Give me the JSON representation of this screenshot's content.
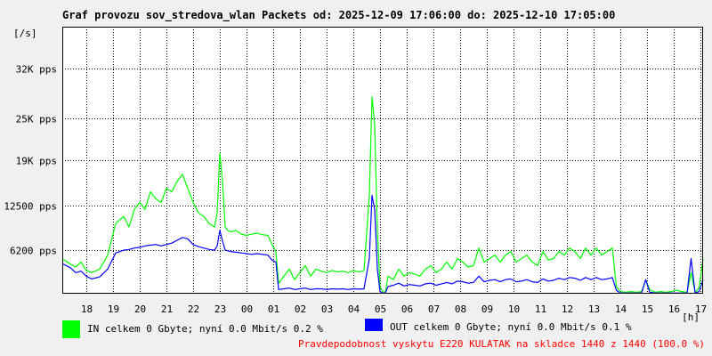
{
  "chart_data": {
    "type": "line",
    "title": "Graf provozu sov_stredova_wlan Packets od: 2025-12-09 17:06:00 do: 2025-12-10 17:05:00",
    "ylabel": "[/s]",
    "xlabel": "[h]",
    "ylim": [
      0,
      38000
    ],
    "yticks": [
      {
        "value": 6200,
        "label": "6200 pps"
      },
      {
        "value": 12500,
        "label": "12500 pps"
      },
      {
        "value": 19000,
        "label": "19K pps"
      },
      {
        "value": 25000,
        "label": "25K pps"
      },
      {
        "value": 32000,
        "label": "32K pps"
      }
    ],
    "xlim": [
      0,
      24
    ],
    "xticks": [
      {
        "value": 0.9,
        "label": "18"
      },
      {
        "value": 1.9,
        "label": "19"
      },
      {
        "value": 2.9,
        "label": "20"
      },
      {
        "value": 3.9,
        "label": "21"
      },
      {
        "value": 4.9,
        "label": "22"
      },
      {
        "value": 5.9,
        "label": "23"
      },
      {
        "value": 6.9,
        "label": "00"
      },
      {
        "value": 7.9,
        "label": "01"
      },
      {
        "value": 8.9,
        "label": "02"
      },
      {
        "value": 9.9,
        "label": "03"
      },
      {
        "value": 10.9,
        "label": "04"
      },
      {
        "value": 11.9,
        "label": "05"
      },
      {
        "value": 12.9,
        "label": "06"
      },
      {
        "value": 13.9,
        "label": "07"
      },
      {
        "value": 14.9,
        "label": "08"
      },
      {
        "value": 15.9,
        "label": "09"
      },
      {
        "value": 16.9,
        "label": "10"
      },
      {
        "value": 17.9,
        "label": "11"
      },
      {
        "value": 18.9,
        "label": "12"
      },
      {
        "value": 19.9,
        "label": "13"
      },
      {
        "value": 20.9,
        "label": "14"
      },
      {
        "value": 21.9,
        "label": "15"
      },
      {
        "value": 22.9,
        "label": "16"
      },
      {
        "value": 23.9,
        "label": "17"
      }
    ],
    "grid": true,
    "series": [
      {
        "name": "IN",
        "color": "#00ff00",
        "x": [
          0,
          0.3,
          0.5,
          0.7,
          0.9,
          1.1,
          1.4,
          1.7,
          2.0,
          2.3,
          2.5,
          2.7,
          2.9,
          3.1,
          3.3,
          3.5,
          3.7,
          3.9,
          4.1,
          4.3,
          4.5,
          4.7,
          4.9,
          5.1,
          5.3,
          5.5,
          5.7,
          5.8,
          5.9,
          6.0,
          6.1,
          6.2,
          6.3,
          6.5,
          6.7,
          6.9,
          7.1,
          7.3,
          7.5,
          7.7,
          7.85,
          8.0,
          8.1,
          8.3,
          8.5,
          8.7,
          8.9,
          9.1,
          9.3,
          9.5,
          9.7,
          9.9,
          10.1,
          10.3,
          10.5,
          10.7,
          10.9,
          11.1,
          11.3,
          11.5,
          11.6,
          11.7,
          11.8,
          11.9,
          12.0,
          12.1,
          12.2,
          12.4,
          12.6,
          12.8,
          13.0,
          13.2,
          13.4,
          13.6,
          13.8,
          14.0,
          14.2,
          14.4,
          14.6,
          14.8,
          15.0,
          15.2,
          15.4,
          15.6,
          15.8,
          16.0,
          16.2,
          16.4,
          16.6,
          16.8,
          17.0,
          17.2,
          17.4,
          17.6,
          17.8,
          18.0,
          18.2,
          18.4,
          18.6,
          18.8,
          19.0,
          19.2,
          19.4,
          19.6,
          19.8,
          20.0,
          20.2,
          20.4,
          20.6,
          20.75,
          20.9,
          21.1,
          21.3,
          21.5,
          21.7,
          21.85,
          22.0,
          22.2,
          22.4,
          22.6,
          22.8,
          23.0,
          23.2,
          23.4,
          23.55,
          23.7,
          23.85,
          24.0
        ],
        "values": [
          5000,
          4200,
          3800,
          4500,
          3300,
          3000,
          3500,
          5500,
          10000,
          11000,
          9500,
          12000,
          13000,
          12000,
          14500,
          13500,
          13000,
          15000,
          14500,
          16000,
          17000,
          15000,
          13000,
          11500,
          11000,
          10000,
          9500,
          11500,
          20000,
          16000,
          9500,
          9000,
          8800,
          9000,
          8500,
          8300,
          8500,
          8600,
          8400,
          8300,
          7000,
          6000,
          1500,
          2500,
          3500,
          2000,
          3000,
          4000,
          2500,
          3500,
          3200,
          3000,
          3300,
          3100,
          3200,
          3000,
          3300,
          3100,
          3300,
          14000,
          28000,
          24000,
          9000,
          1000,
          300,
          200,
          2500,
          2000,
          3500,
          2500,
          3000,
          2800,
          2500,
          3500,
          4000,
          3000,
          3500,
          4500,
          3500,
          5000,
          4500,
          3800,
          4000,
          6500,
          4500,
          5000,
          5500,
          4500,
          5500,
          6000,
          4500,
          5000,
          5500,
          4500,
          4000,
          6000,
          4800,
          5000,
          6000,
          5500,
          6500,
          6000,
          5000,
          6500,
          5500,
          6500,
          5500,
          6000,
          6500,
          1000,
          300,
          200,
          300,
          200,
          300,
          2000,
          600,
          200,
          300,
          200,
          300,
          500,
          300,
          200,
          3000,
          200,
          800,
          5000
        ]
      },
      {
        "name": "OUT",
        "color": "#0000ff",
        "x": [
          0,
          0.3,
          0.5,
          0.7,
          0.9,
          1.1,
          1.4,
          1.7,
          2.0,
          2.3,
          2.5,
          2.7,
          2.9,
          3.1,
          3.3,
          3.5,
          3.7,
          3.9,
          4.1,
          4.3,
          4.5,
          4.7,
          4.9,
          5.1,
          5.3,
          5.5,
          5.7,
          5.8,
          5.9,
          6.0,
          6.1,
          6.2,
          6.3,
          6.5,
          6.7,
          6.9,
          7.1,
          7.3,
          7.5,
          7.7,
          7.85,
          8.0,
          8.1,
          8.3,
          8.5,
          8.7,
          8.9,
          9.1,
          9.3,
          9.5,
          9.7,
          9.9,
          10.1,
          10.3,
          10.5,
          10.7,
          10.9,
          11.1,
          11.3,
          11.5,
          11.6,
          11.7,
          11.8,
          11.9,
          12.0,
          12.1,
          12.2,
          12.4,
          12.6,
          12.8,
          13.0,
          13.2,
          13.4,
          13.6,
          13.8,
          14.0,
          14.2,
          14.4,
          14.6,
          14.8,
          15.0,
          15.2,
          15.4,
          15.6,
          15.8,
          16.0,
          16.2,
          16.4,
          16.6,
          16.8,
          17.0,
          17.2,
          17.4,
          17.6,
          17.8,
          18.0,
          18.2,
          18.4,
          18.6,
          18.8,
          19.0,
          19.2,
          19.4,
          19.6,
          19.8,
          20.0,
          20.2,
          20.4,
          20.6,
          20.75,
          20.9,
          21.1,
          21.3,
          21.5,
          21.7,
          21.85,
          22.0,
          22.2,
          22.4,
          22.6,
          22.8,
          23.0,
          23.2,
          23.4,
          23.55,
          23.7,
          23.85,
          24.0
        ],
        "values": [
          4300,
          3700,
          3000,
          3200,
          2500,
          2100,
          2400,
          3500,
          5800,
          6200,
          6300,
          6500,
          6600,
          6800,
          6900,
          7000,
          6800,
          7000,
          7200,
          7600,
          8000,
          7800,
          7000,
          6700,
          6500,
          6300,
          6200,
          6800,
          9000,
          7500,
          6200,
          6100,
          6000,
          5900,
          5800,
          5700,
          5600,
          5700,
          5600,
          5500,
          4800,
          4500,
          600,
          700,
          800,
          600,
          700,
          800,
          600,
          700,
          700,
          600,
          700,
          650,
          700,
          600,
          700,
          650,
          700,
          5000,
          14000,
          12000,
          3500,
          300,
          100,
          100,
          1000,
          1200,
          1500,
          1100,
          1300,
          1200,
          1100,
          1400,
          1500,
          1200,
          1400,
          1600,
          1400,
          1800,
          1700,
          1500,
          1600,
          2500,
          1700,
          1900,
          2000,
          1700,
          2000,
          2100,
          1700,
          1800,
          2000,
          1700,
          1600,
          2100,
          1800,
          1900,
          2200,
          2000,
          2300,
          2200,
          1900,
          2300,
          2000,
          2300,
          2000,
          2100,
          2300,
          500,
          100,
          100,
          100,
          100,
          100,
          2000,
          200,
          100,
          100,
          100,
          100,
          100,
          100,
          100,
          5000,
          100,
          300,
          2000
        ]
      }
    ]
  },
  "legend": {
    "in_text": "IN celkem 0 Gbyte; nyní   0.0 Mbit/s 0.2 %",
    "out_text": "OUT celkem 0 Gbyte; nyní   0.0 Mbit/s 0.1 %"
  },
  "footer": "Pravdepodobnost vyskytu E220 KULATAK na skladce 1440 z 1440 (100.0 %)"
}
